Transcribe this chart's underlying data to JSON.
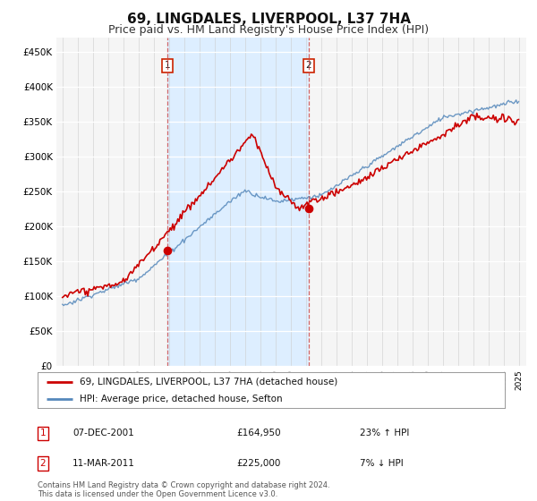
{
  "title": "69, LINGDALES, LIVERPOOL, L37 7HA",
  "subtitle": "Price paid vs. HM Land Registry's House Price Index (HPI)",
  "title_fontsize": 11,
  "subtitle_fontsize": 9,
  "background_color": "#ffffff",
  "plot_bg_color": "#f5f5f5",
  "shaded_region_color": "#ddeeff",
  "ylim": [
    0,
    470000
  ],
  "yticks": [
    0,
    50000,
    100000,
    150000,
    200000,
    250000,
    300000,
    350000,
    400000,
    450000
  ],
  "ytick_labels": [
    "£0",
    "£50K",
    "£100K",
    "£150K",
    "£200K",
    "£250K",
    "£300K",
    "£350K",
    "£400K",
    "£450K"
  ],
  "legend_entries": [
    "69, LINGDALES, LIVERPOOL, L37 7HA (detached house)",
    "HPI: Average price, detached house, Sefton"
  ],
  "legend_colors": [
    "#cc0000",
    "#6699cc"
  ],
  "sale1_date": "07-DEC-2001",
  "sale1_price": 164950,
  "sale1_hpi": "23% ↑ HPI",
  "sale1_x": 2001.92,
  "sale1_y": 164950,
  "sale2_date": "11-MAR-2011",
  "sale2_price": 225000,
  "sale2_hpi": "7% ↓ HPI",
  "sale2_x": 2011.19,
  "sale2_y": 225000,
  "footnote": "Contains HM Land Registry data © Crown copyright and database right 2024.\nThis data is licensed under the Open Government Licence v3.0.",
  "hpi_color": "#5588bb",
  "price_color": "#cc0000",
  "hpi_linewidth": 1.0,
  "price_linewidth": 1.2,
  "box_color": "#cc2200",
  "xmin": 1995,
  "xmax": 2025
}
